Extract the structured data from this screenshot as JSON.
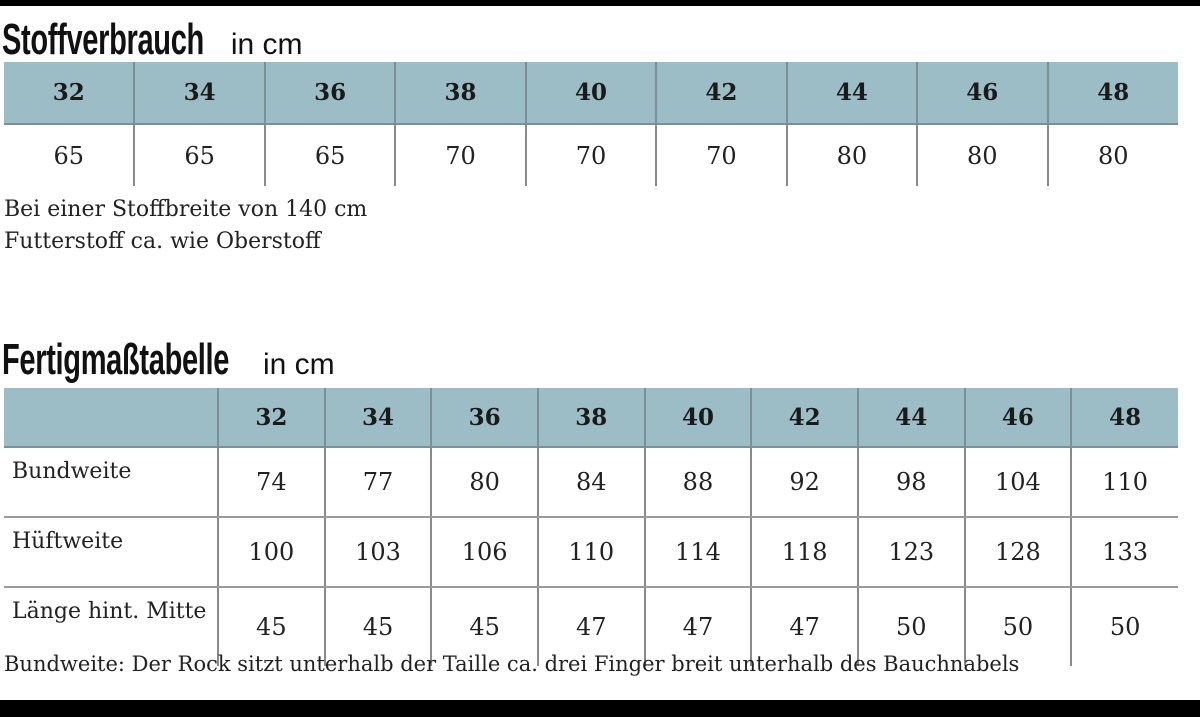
{
  "fabric": {
    "title": "Stoffverbrauch",
    "unit": "in cm",
    "sizes": [
      "32",
      "34",
      "36",
      "38",
      "40",
      "42",
      "44",
      "46",
      "48"
    ],
    "values": [
      "65",
      "65",
      "65",
      "70",
      "70",
      "70",
      "80",
      "80",
      "80"
    ],
    "note_width": "Bei einer Stoffbreite von 140 cm",
    "note_lining": "Futterstoff ca. wie Oberstoff"
  },
  "measurements": {
    "title": "Fertigmaßtabelle",
    "unit": "in cm",
    "sizes": [
      "32",
      "34",
      "36",
      "38",
      "40",
      "42",
      "44",
      "46",
      "48"
    ],
    "rows": [
      {
        "label": "Bundweite",
        "values": [
          "74",
          "77",
          "80",
          "84",
          "88",
          "92",
          "98",
          "104",
          "110"
        ]
      },
      {
        "label": "Hüftweite",
        "values": [
          "100",
          "103",
          "106",
          "110",
          "114",
          "118",
          "123",
          "128",
          "133"
        ]
      },
      {
        "label": "Länge hint. Mitte",
        "values": [
          "45",
          "45",
          "45",
          "47",
          "47",
          "47",
          "50",
          "50",
          "50"
        ]
      }
    ],
    "footnote": "Bundweite: Der Rock sitzt unterhalb der Taille ca. drei Finger breit unterhalb des Bauchnabels"
  },
  "colors": {
    "header_fill": "#9cbdc6",
    "frame_bars": "#000000"
  }
}
